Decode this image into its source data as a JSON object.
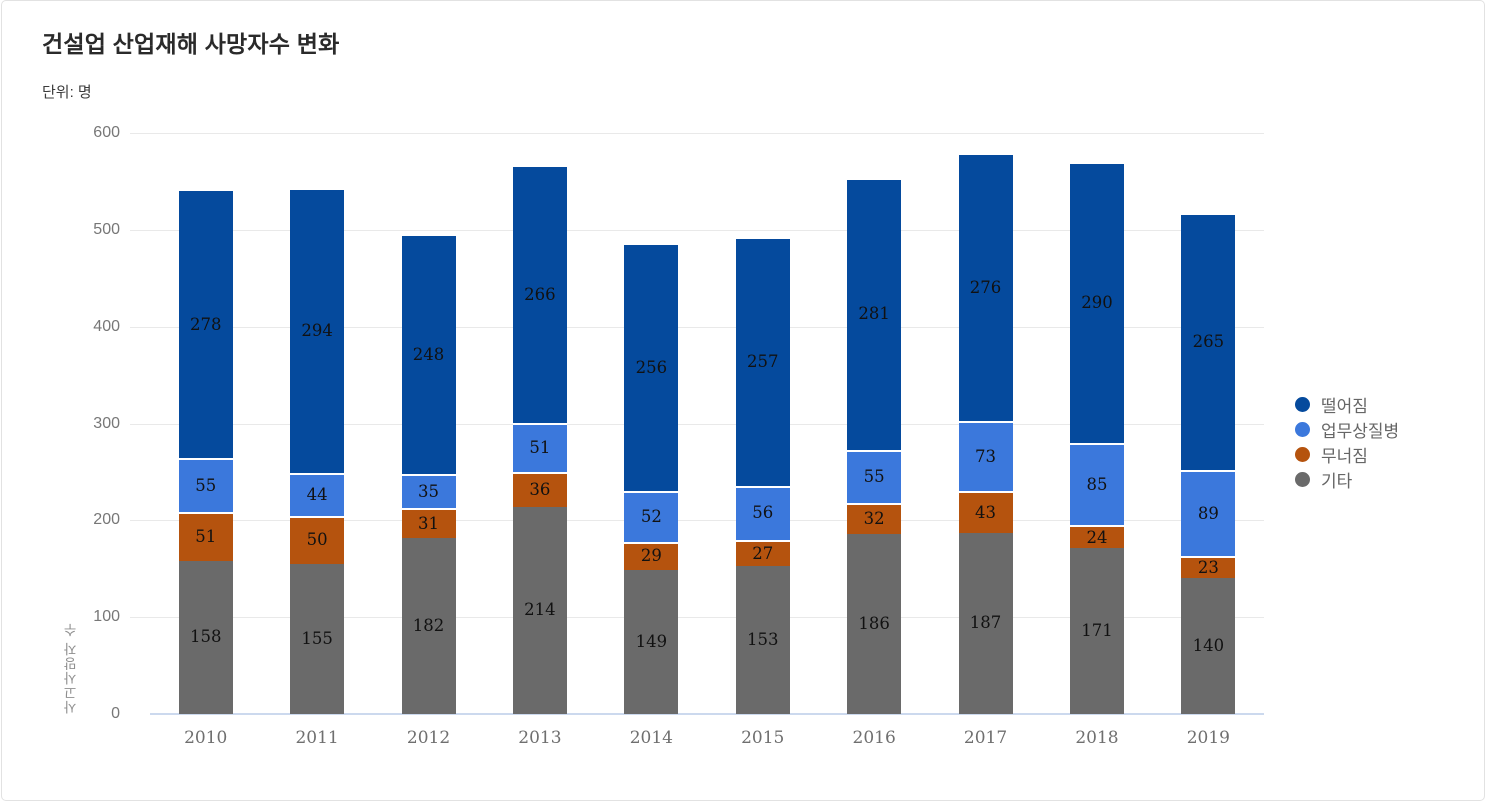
{
  "header": {
    "title": "건설업 산업재해 사망자수 변화",
    "unit_label": "단위: 명"
  },
  "chart_data": {
    "type": "bar",
    "stacked": true,
    "title": "건설업 산업재해 사망자수 변화",
    "subtitle": "단위: 명",
    "xlabel": "",
    "ylabel": "사고사망자 수",
    "ylim": [
      0,
      600
    ],
    "yticks": [
      0,
      100,
      200,
      300,
      400,
      500,
      600
    ],
    "grid": true,
    "legend_position": "right",
    "categories": [
      "2010",
      "2011",
      "2012",
      "2013",
      "2014",
      "2015",
      "2016",
      "2017",
      "2018",
      "2019"
    ],
    "series": [
      {
        "name": "기타",
        "color": "#6a6a6a",
        "values": [
          158,
          155,
          182,
          214,
          149,
          153,
          186,
          187,
          171,
          140
        ]
      },
      {
        "name": "무너짐",
        "color": "#b5530e",
        "values": [
          51,
          50,
          31,
          36,
          29,
          27,
          32,
          43,
          24,
          23
        ]
      },
      {
        "name": "업무상질병",
        "color": "#3b78dc",
        "values": [
          55,
          44,
          35,
          51,
          52,
          56,
          55,
          73,
          85,
          89
        ]
      },
      {
        "name": "떨어짐",
        "color": "#054a9d",
        "values": [
          278,
          294,
          248,
          266,
          256,
          257,
          281,
          276,
          290,
          265
        ]
      }
    ],
    "legend": [
      {
        "label": "떨어짐",
        "color": "#054a9d"
      },
      {
        "label": "업무상질병",
        "color": "#3b78dc"
      },
      {
        "label": "무너짐",
        "color": "#b5530e"
      },
      {
        "label": "기타",
        "color": "#6a6a6a"
      }
    ],
    "colors": {
      "gridline": "#e9e9e9",
      "axis_line": "#ccd9ee",
      "tick_text": "#777777",
      "bar_label_text": "#111111"
    }
  }
}
